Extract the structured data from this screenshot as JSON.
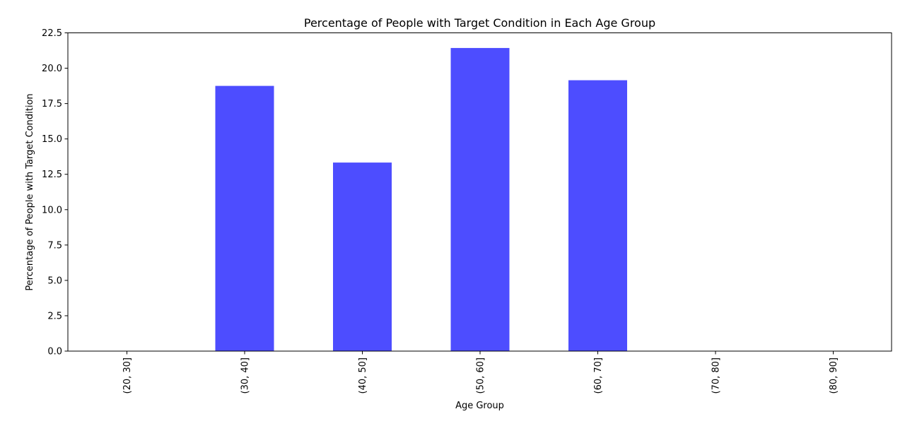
{
  "chart_data": {
    "type": "bar",
    "title": "Percentage of People with Target Condition in Each Age Group",
    "xlabel": "Age Group",
    "ylabel": "Percentage of People with Target Condition",
    "categories": [
      "(20, 30]",
      "(30, 40]",
      "(40, 50]",
      "(50, 60]",
      "(60, 70]",
      "(70, 80]",
      "(80, 90]"
    ],
    "values": [
      0,
      18.75,
      13.33,
      21.43,
      19.15,
      0,
      0
    ],
    "ylim": [
      0,
      22.5
    ],
    "yticks": [
      "0.0",
      "2.5",
      "5.0",
      "7.5",
      "10.0",
      "12.5",
      "15.0",
      "17.5",
      "20.0",
      "22.5"
    ],
    "bar_color": "#4d4dff",
    "grid": false,
    "legend": "none"
  }
}
